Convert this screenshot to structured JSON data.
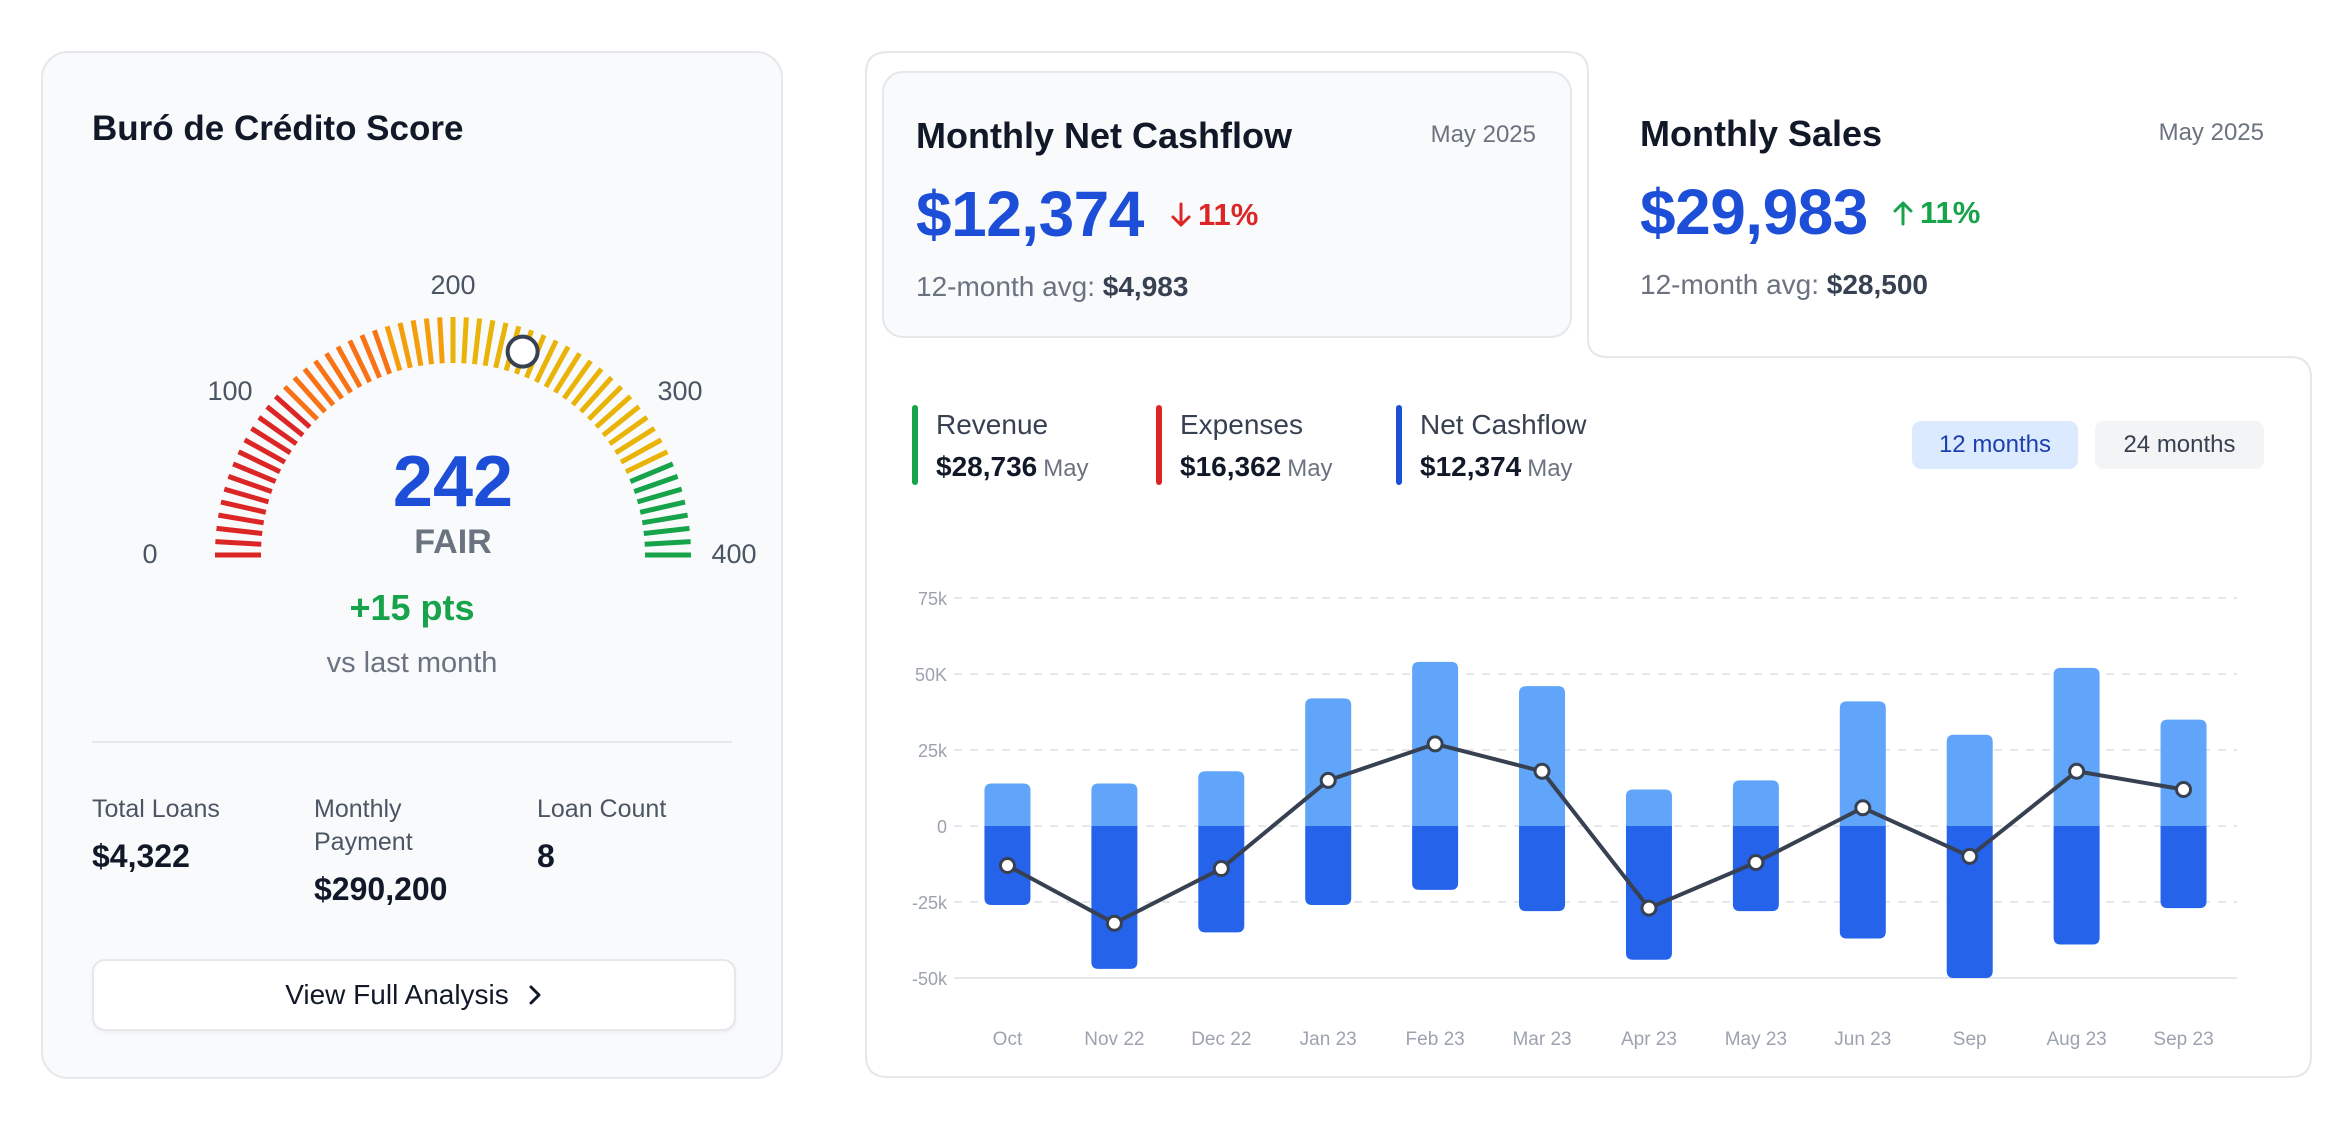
{
  "credit_score": {
    "title": "Buró de Crédito Score",
    "score": "242",
    "score_value": 242,
    "score_min": 0,
    "score_max": 400,
    "rating": "FAIR",
    "scale_labels": [
      "0",
      "100",
      "200",
      "300",
      "400"
    ],
    "delta": "+15 pts",
    "delta_sub": "vs last month",
    "stats": [
      {
        "label": "Total Loans",
        "value": "$4,322"
      },
      {
        "label": "Monthly Payment",
        "value": "$290,200"
      },
      {
        "label": "Loan Count",
        "value": "8"
      }
    ],
    "button_label": "View Full Analysis",
    "colors": {
      "red": "#dc2626",
      "orange": "#f97316",
      "yellow": "#eab308",
      "green": "#16a34a",
      "score": "#1d4ed8"
    }
  },
  "cashflow_card": {
    "title": "Monthly Net Cashflow",
    "date": "May 2025",
    "value": "$12,374",
    "change": "11%",
    "change_direction": "down",
    "change_color": "#dc2626",
    "avg_label": "12-month avg:",
    "avg_value": "$4,983"
  },
  "sales_card": {
    "title": "Monthly Sales",
    "date": "May 2025",
    "value": "$29,983",
    "change": "11%",
    "change_direction": "up",
    "change_color": "#16a34a",
    "avg_label": "12-month avg:",
    "avg_value": "$28,500"
  },
  "legend": [
    {
      "label": "Revenue",
      "value": "$28,736",
      "month": "May",
      "color": "#16a34a"
    },
    {
      "label": "Expenses",
      "value": "$16,362",
      "month": "May",
      "color": "#dc2626"
    },
    {
      "label": "Net Cashflow",
      "value": "$12,374",
      "month": "May",
      "color": "#1d4ed8"
    }
  ],
  "range_buttons": {
    "active": "12 months",
    "inactive": "24 months"
  },
  "chart_data": {
    "type": "bar",
    "categories": [
      "Oct",
      "Nov 22",
      "Dec 22",
      "Jan 23",
      "Feb 23",
      "Mar 23",
      "Apr 23",
      "May 23",
      "Jun 23",
      "Sep",
      "Aug 23",
      "Sep 23"
    ],
    "series": [
      {
        "values": [
          14000,
          14000,
          18000,
          42000,
          54000,
          46000,
          12000,
          15000,
          41000,
          30000,
          52000,
          35000
        ],
        "color": "#60a5fa"
      },
      {
        "values": [
          -26000,
          -47000,
          -35000,
          -26000,
          -21000,
          -28000,
          -44000,
          -28000,
          -37000,
          -50000,
          -39000,
          -27000
        ],
        "color": "#2563eb"
      },
      {
        "values": [
          -13000,
          -32000,
          -14000,
          15000,
          27000,
          18000,
          -27000,
          -12000,
          6000,
          -10000,
          18000,
          12000
        ],
        "color": "#374151",
        "style": "line"
      }
    ],
    "y_ticks": [
      "75k",
      "50K",
      "25k",
      "0",
      "-25k",
      "-50k"
    ],
    "y_tick_values": [
      75000,
      50000,
      25000,
      0,
      -25000,
      -50000
    ],
    "ylim": [
      -50000,
      75000
    ],
    "grid": true
  }
}
